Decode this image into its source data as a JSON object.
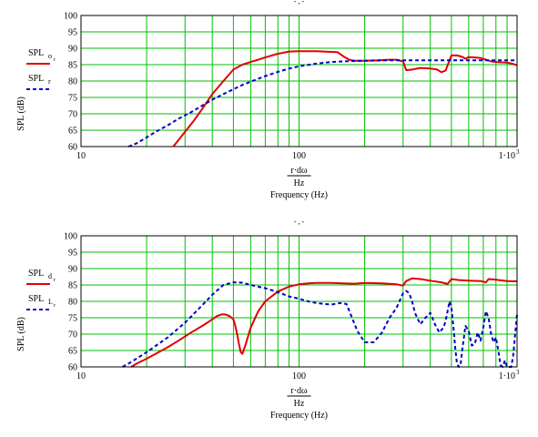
{
  "colors": {
    "background": "#ffffff",
    "grid": "#00c000",
    "series_solid": "#e00000",
    "series_dashed": "#0000cc",
    "axis": "#000000"
  },
  "chart_data": [
    {
      "type": "line",
      "x_scale": "log",
      "xlim": [
        10,
        1000
      ],
      "ylim": [
        60,
        100
      ],
      "grid": true,
      "legend_position": "left",
      "top_label": "- , -",
      "x_tick_labels": [
        "10",
        "100",
        "1·10"
      ],
      "x_tick_exponent": "3",
      "y_ticks": [
        60,
        65,
        70,
        75,
        80,
        85,
        90,
        95,
        100
      ],
      "ylabel": "SPL (dB)",
      "xlabel_numerator": "r·dω",
      "xlabel_denominator": "Hz",
      "xlabel_caption": "Frequency (Hz)",
      "series": [
        {
          "name": "SPL",
          "subscript": "o",
          "sub_subscript": "r",
          "style": "solid",
          "x": [
            26.5,
            28,
            30,
            33,
            36,
            40,
            45,
            50,
            55,
            60,
            65,
            70,
            75,
            80,
            90,
            100,
            110,
            120,
            130,
            140,
            150,
            160,
            170,
            180,
            200,
            230,
            260,
            280,
            300,
            310,
            330,
            360,
            400,
            430,
            450,
            470,
            500,
            530,
            560,
            580,
            600,
            640,
            680,
            720,
            760,
            800,
            850,
            900,
            950,
            1000
          ],
          "y": [
            60,
            62,
            64.5,
            68,
            71.5,
            76,
            80,
            83.5,
            85,
            85.8,
            86.5,
            87.2,
            87.8,
            88.3,
            89,
            89.1,
            89.1,
            89.1,
            89,
            88.9,
            88.8,
            87.5,
            86.5,
            86.2,
            86.2,
            86.3,
            86.5,
            86.5,
            86,
            83.3,
            83.5,
            84,
            83.8,
            83.5,
            82.7,
            83.2,
            87.8,
            87.8,
            87.4,
            86.8,
            87.3,
            87.2,
            87,
            86.5,
            86,
            85.8,
            85.7,
            85.6,
            85.3,
            84.8
          ]
        },
        {
          "name": "SPL",
          "subscript": "r",
          "style": "dashed",
          "x": [
            16.5,
            18,
            20,
            22,
            25,
            28,
            32,
            36,
            40,
            45,
            50,
            55,
            60,
            70,
            80,
            90,
            100,
            120,
            140,
            160,
            180,
            200,
            250,
            300,
            400,
            500,
            700,
            1000
          ],
          "y": [
            60,
            61,
            62.8,
            64.5,
            66.5,
            68.5,
            70.5,
            72.5,
            74.3,
            76,
            77.5,
            78.8,
            79.8,
            81.5,
            82.8,
            83.8,
            84.5,
            85.3,
            85.8,
            86,
            86.1,
            86.2,
            86.3,
            86.3,
            86.3,
            86.3,
            86.3,
            86.3
          ]
        }
      ]
    },
    {
      "type": "line",
      "x_scale": "log",
      "xlim": [
        10,
        1000
      ],
      "ylim": [
        60,
        100
      ],
      "grid": true,
      "legend_position": "left",
      "top_label": "- , -",
      "x_tick_labels": [
        "10",
        "100",
        "1·10"
      ],
      "x_tick_exponent": "3",
      "y_ticks": [
        60,
        65,
        70,
        75,
        80,
        85,
        90,
        95,
        100
      ],
      "ylabel": "SPL (dB)",
      "xlabel_numerator": "r·dω",
      "xlabel_denominator": "Hz",
      "xlabel_caption": "Frequency (Hz)",
      "series": [
        {
          "name": "SPL",
          "subscript": "d",
          "sub_subscript": "r",
          "style": "solid",
          "x": [
            17,
            18,
            20,
            22,
            25,
            28,
            32,
            36,
            40,
            42,
            44,
            46,
            48,
            50,
            51,
            52,
            53,
            54,
            55,
            57,
            60,
            65,
            70,
            80,
            90,
            100,
            110,
            120,
            140,
            160,
            180,
            200,
            240,
            280,
            300,
            310,
            330,
            360,
            400,
            450,
            480,
            500,
            540,
            600,
            680,
            720,
            740,
            800,
            900,
            1000
          ],
          "y": [
            60,
            61,
            62.5,
            64,
            66,
            68,
            70.5,
            72.5,
            74.5,
            75.5,
            76,
            76,
            75.5,
            74.5,
            72.5,
            70,
            67,
            64.5,
            64,
            67,
            72,
            77,
            80,
            83,
            84.5,
            85.2,
            85.5,
            85.6,
            85.6,
            85.5,
            85.4,
            85.6,
            85.5,
            85.2,
            84.8,
            86.2,
            87,
            86.8,
            86.3,
            85.8,
            85.3,
            86.8,
            86.5,
            86.3,
            86.2,
            85.8,
            86.8,
            86.6,
            86.2,
            86.1
          ]
        },
        {
          "name": "SPL",
          "subscript": "L",
          "sub_subscript": "r",
          "style": "dashed",
          "x": [
            15.5,
            17,
            20,
            25,
            30,
            35,
            40,
            45,
            50,
            55,
            60,
            70,
            80,
            90,
            100,
            110,
            120,
            140,
            155,
            165,
            175,
            185,
            200,
            220,
            240,
            260,
            280,
            300,
            310,
            320,
            330,
            340,
            360,
            380,
            400,
            420,
            440,
            460,
            470,
            480,
            490,
            500,
            510,
            520,
            530,
            540,
            550,
            560,
            580,
            600,
            620,
            640,
            660,
            680,
            700,
            720,
            740,
            760,
            780,
            800,
            820,
            840,
            860,
            880,
            900,
            920,
            940,
            960,
            980,
            1000
          ],
          "y": [
            60,
            61.5,
            64.5,
            69,
            73.5,
            78,
            82,
            85,
            85.8,
            85.7,
            85,
            84,
            82.8,
            81.5,
            80.8,
            80,
            79.5,
            79,
            79.5,
            79.2,
            75,
            71,
            67.5,
            67.5,
            70.5,
            75,
            78,
            82.5,
            83.2,
            82.5,
            80,
            76.5,
            73,
            75,
            76.5,
            73,
            70.5,
            72,
            74,
            77,
            80,
            78,
            72.5,
            66,
            61,
            60,
            60.3,
            65,
            72.5,
            71,
            66.5,
            67,
            70.5,
            68,
            72,
            77,
            75,
            70,
            67.5,
            69,
            65,
            60.5,
            60,
            62,
            60,
            58.5,
            60,
            63.5,
            70,
            76
          ]
        }
      ]
    }
  ]
}
